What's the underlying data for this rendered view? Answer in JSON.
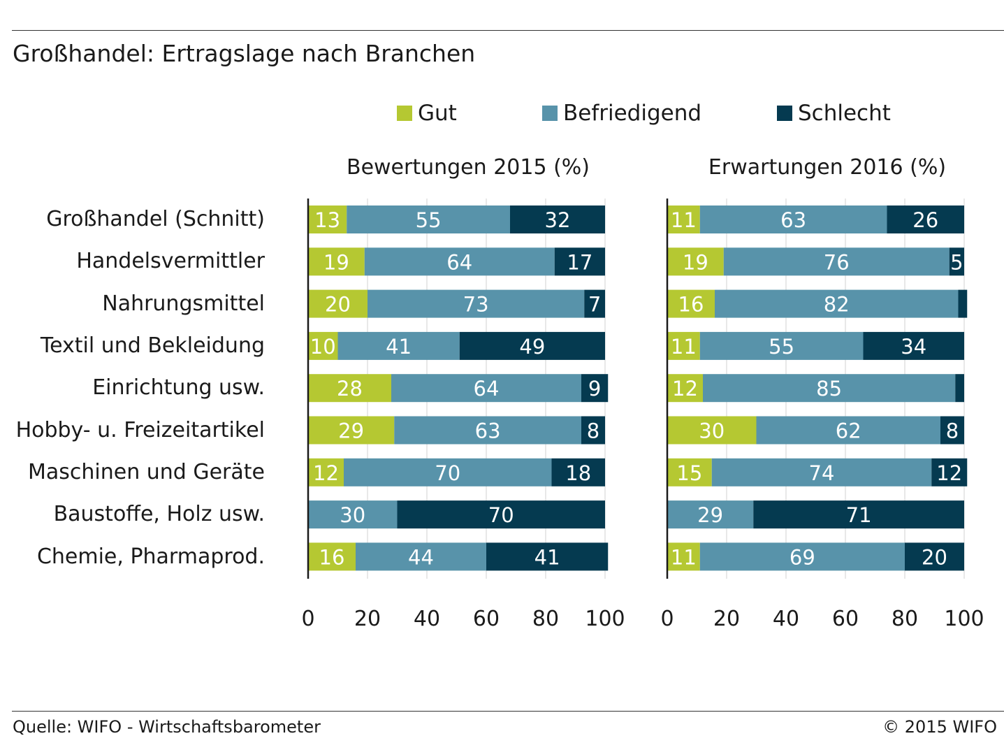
{
  "chart_data": {
    "type": "bar",
    "orientation": "horizontal",
    "stacked": true,
    "title": "Großhandel: Ertragslage nach Branchen",
    "categories": [
      "Großhandel (Schnitt)",
      "Handelsvermittler",
      "Nahrungsmittel",
      "Textil und Bekleidung",
      "Einrichtung usw.",
      "Hobby- u. Freizeitartikel",
      "Maschinen und Geräte",
      "Baustoffe, Holz usw.",
      "Chemie, Pharmaprod."
    ],
    "legend": [
      {
        "name": "Gut",
        "color": "#b5c832"
      },
      {
        "name": "Befriedigend",
        "color": "#5893aa"
      },
      {
        "name": "Schlecht",
        "color": "#053a50"
      }
    ],
    "legend_position": "top",
    "panels": [
      {
        "title": "Bewertungen 2015 (%)",
        "xlim": [
          0,
          100
        ],
        "xticks": [
          "0",
          "20",
          "40",
          "60",
          "80",
          "100"
        ],
        "series": [
          {
            "name": "Gut",
            "values": [
              13,
              19,
              20,
              10,
              28,
              29,
              12,
              0,
              16
            ]
          },
          {
            "name": "Befriedigend",
            "values": [
              55,
              64,
              73,
              41,
              64,
              63,
              70,
              30,
              44
            ]
          },
          {
            "name": "Schlecht",
            "values": [
              32,
              17,
              7,
              49,
              9,
              8,
              18,
              70,
              41
            ]
          }
        ]
      },
      {
        "title": "Erwartungen 2016 (%)",
        "xlim": [
          0,
          100
        ],
        "xticks": [
          "0",
          "20",
          "40",
          "60",
          "80",
          "100"
        ],
        "series": [
          {
            "name": "Gut",
            "values": [
              11,
              19,
              16,
              11,
              12,
              30,
              15,
              0,
              11
            ]
          },
          {
            "name": "Befriedigend",
            "values": [
              63,
              76,
              82,
              55,
              85,
              62,
              74,
              29,
              69
            ]
          },
          {
            "name": "Schlecht",
            "values": [
              26,
              5,
              3,
              34,
              3,
              8,
              12,
              71,
              20
            ]
          }
        ]
      }
    ],
    "grid": "vertical"
  },
  "footer": {
    "source": "Quelle: WIFO - Wirtschaftsbarometer",
    "copyright": "© 2015 WIFO"
  }
}
